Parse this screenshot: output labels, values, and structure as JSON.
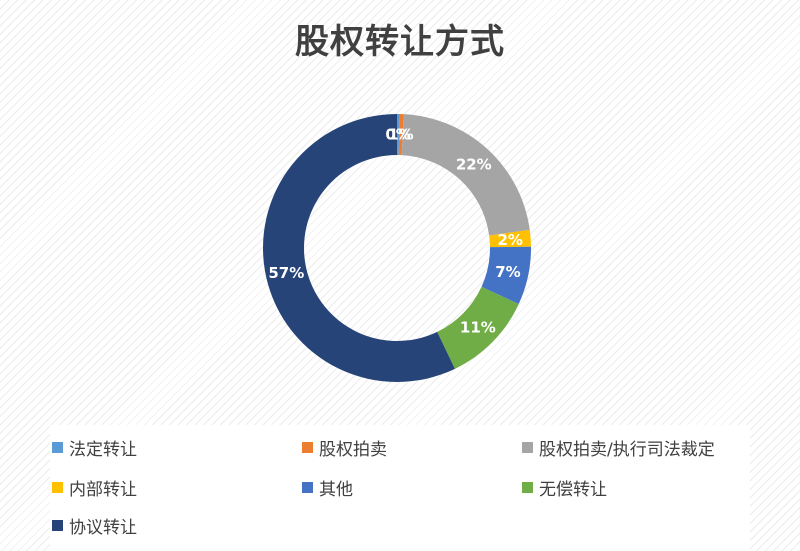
{
  "chart_data": {
    "type": "pie",
    "title": "股权转让方式",
    "donut": true,
    "legend_position": "bottom",
    "categories": [
      "法定转让",
      "股权拍卖",
      "股权拍卖/执行司法裁定",
      "内部转让",
      "其他",
      "无偿转让",
      "协议转让"
    ],
    "values": [
      0.3,
      0.5,
      22,
      2,
      7,
      11,
      57
    ],
    "labels": [
      "0%",
      "1%",
      "22%",
      "2%",
      "7%",
      "11%",
      "57%"
    ],
    "colors": [
      "#5B9BD5",
      "#ED7D31",
      "#A5A5A5",
      "#FFC000",
      "#4472C4",
      "#70AD47",
      "#264478"
    ]
  }
}
